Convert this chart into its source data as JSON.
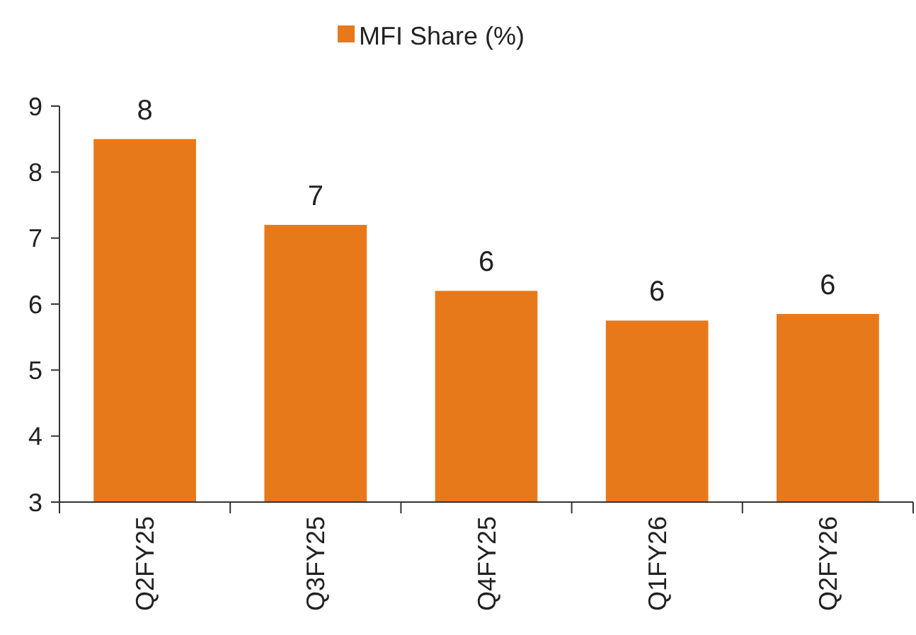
{
  "chart_data": {
    "type": "bar",
    "categories": [
      "Q2FY25",
      "Q3FY25",
      "Q4FY25",
      "Q1FY26",
      "Q2FY26"
    ],
    "series": [
      {
        "name": "MFI Share (%)",
        "color": "#e8791a",
        "values": [
          8.5,
          7.2,
          6.2,
          5.75,
          5.85
        ],
        "value_labels": [
          "8",
          "7",
          "6",
          "6",
          "6"
        ]
      }
    ],
    "ylim": [
      3,
      9
    ],
    "yticks": [
      3,
      4,
      5,
      6,
      7,
      8,
      9
    ],
    "grid": false,
    "legend": "top"
  }
}
